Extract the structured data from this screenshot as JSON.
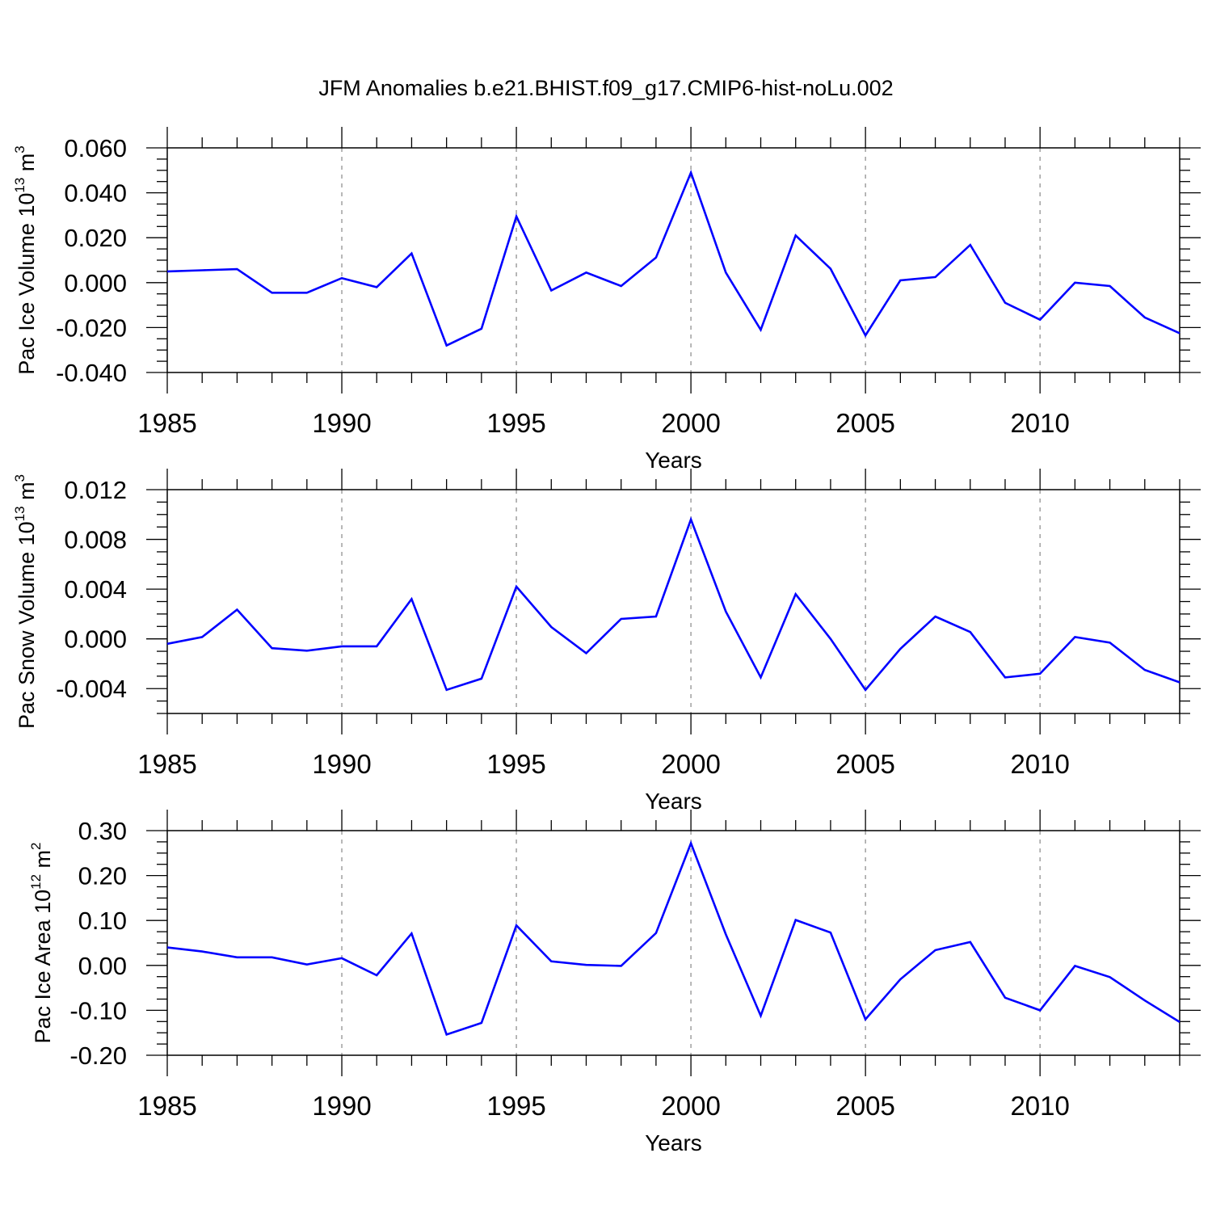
{
  "title": "JFM Anomalies b.e21.BHIST.f09_g17.CMIP6-hist-noLu.002",
  "line_color": "#0000ff",
  "chart_data": [
    {
      "type": "line",
      "ylabel": {
        "prefix": "Pac Ice Volume 10",
        "exp1": "13",
        "mid": " m",
        "exp2": "3"
      },
      "xlabel": "Years",
      "xlim": [
        1985,
        2014
      ],
      "ylim": [
        -0.04,
        0.06
      ],
      "xticks": [
        1985,
        1990,
        1995,
        2000,
        2005,
        2010
      ],
      "xtick_labels": [
        "1985",
        "1990",
        "1995",
        "2000",
        "2005",
        "2010"
      ],
      "yticks": [
        -0.04,
        -0.02,
        0.0,
        0.02,
        0.04,
        0.06
      ],
      "ytick_labels": [
        "-0.040",
        "-0.020",
        "0.000",
        "0.020",
        "0.040",
        "0.060"
      ],
      "ytick_minor_step": 0.005,
      "series": [
        {
          "name": "Pac Ice Volume",
          "x": [
            1985,
            1986,
            1987,
            1988,
            1989,
            1990,
            1991,
            1992,
            1993,
            1994,
            1995,
            1996,
            1997,
            1998,
            1999,
            2000,
            2001,
            2002,
            2003,
            2004,
            2005,
            2006,
            2007,
            2008,
            2009,
            2010,
            2011,
            2012,
            2013,
            2014
          ],
          "values": [
            0.005,
            0.0055,
            0.006,
            -0.0045,
            -0.0045,
            0.002,
            -0.002,
            0.013,
            -0.028,
            -0.0205,
            0.0295,
            -0.0035,
            0.0045,
            -0.0015,
            0.0112,
            0.049,
            0.0045,
            -0.021,
            0.021,
            0.0062,
            -0.0235,
            0.001,
            0.0025,
            0.0168,
            -0.009,
            -0.0165,
            0.0,
            -0.0015,
            -0.0155,
            -0.0225
          ]
        }
      ]
    },
    {
      "type": "line",
      "ylabel": {
        "prefix": "Pac Snow Volume 10",
        "exp1": "13",
        "mid": " m",
        "exp2": "3"
      },
      "xlabel": "Years",
      "xlim": [
        1985,
        2014
      ],
      "ylim": [
        -0.006,
        0.012
      ],
      "xticks": [
        1985,
        1990,
        1995,
        2000,
        2005,
        2010
      ],
      "xtick_labels": [
        "1985",
        "1990",
        "1995",
        "2000",
        "2005",
        "2010"
      ],
      "yticks": [
        -0.004,
        0.0,
        0.004,
        0.008,
        0.012
      ],
      "ytick_labels": [
        "-0.004",
        "0.000",
        "0.004",
        "0.008",
        "0.012"
      ],
      "ytick_minor_step": 0.001,
      "series": [
        {
          "name": "Pac Snow Volume",
          "x": [
            1985,
            1986,
            1987,
            1988,
            1989,
            1990,
            1991,
            1992,
            1993,
            1994,
            1995,
            1996,
            1997,
            1998,
            1999,
            2000,
            2001,
            2002,
            2003,
            2004,
            2005,
            2006,
            2007,
            2008,
            2009,
            2010,
            2011,
            2012,
            2013,
            2014
          ],
          "values": [
            -0.0004,
            0.00015,
            0.00235,
            -0.00075,
            -0.00095,
            -0.0006,
            -0.0006,
            0.0032,
            -0.0041,
            -0.0032,
            0.0042,
            0.00095,
            -0.00115,
            0.0016,
            0.0018,
            0.0096,
            0.0022,
            -0.0031,
            0.0036,
            0.0,
            -0.0041,
            -0.0008,
            0.0018,
            0.00055,
            -0.0031,
            -0.0028,
            0.00015,
            -0.0003,
            -0.0025,
            -0.0035
          ]
        }
      ]
    },
    {
      "type": "line",
      "ylabel": {
        "prefix": "Pac Ice Area 10",
        "exp1": "12",
        "mid": " m",
        "exp2": "2"
      },
      "xlabel": "Years",
      "xlim": [
        1985,
        2014
      ],
      "ylim": [
        -0.2,
        0.3
      ],
      "xticks": [
        1985,
        1990,
        1995,
        2000,
        2005,
        2010
      ],
      "xtick_labels": [
        "1985",
        "1990",
        "1995",
        "2000",
        "2005",
        "2010"
      ],
      "yticks": [
        -0.2,
        -0.1,
        0.0,
        0.1,
        0.2,
        0.3
      ],
      "ytick_labels": [
        "-0.20",
        "-0.10",
        "0.00",
        "0.10",
        "0.20",
        "0.30"
      ],
      "ytick_minor_step": 0.025,
      "series": [
        {
          "name": "Pac Ice Area",
          "x": [
            1985,
            1986,
            1987,
            1988,
            1989,
            1990,
            1991,
            1992,
            1993,
            1994,
            1995,
            1996,
            1997,
            1998,
            1999,
            2000,
            2001,
            2002,
            2003,
            2004,
            2005,
            2006,
            2007,
            2008,
            2009,
            2010,
            2011,
            2012,
            2013,
            2014
          ],
          "values": [
            0.04,
            0.031,
            0.018,
            0.018,
            0.002,
            0.016,
            -0.022,
            0.071,
            -0.154,
            -0.128,
            0.089,
            0.009,
            0.001,
            -0.001,
            0.072,
            0.272,
            0.069,
            -0.112,
            0.101,
            0.073,
            -0.12,
            -0.031,
            0.034,
            0.052,
            -0.072,
            -0.1,
            -0.001,
            -0.026,
            -0.078,
            -0.126
          ]
        }
      ]
    }
  ]
}
